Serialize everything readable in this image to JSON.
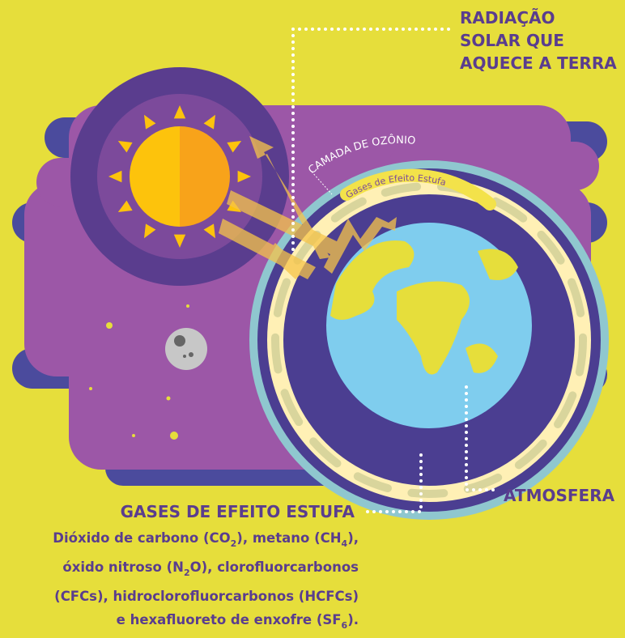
{
  "labels": {
    "radiation": [
      "RADIAÇÃO",
      "SOLAR QUE",
      "AQUECE A TERRA"
    ],
    "ozone": "CAMADA DE OZÔNIO",
    "greenhouse_ring": "Gases de Efeito Estufa",
    "atmosphere": "ATMOSFERA",
    "gases_title": "GASES DE EFEITO ESTUFA"
  },
  "description": {
    "lines": [
      [
        "Dióxido de carbono (CO",
        "2",
        "), metano (CH",
        "4",
        "),"
      ],
      [
        "óxido nitroso (N",
        "2",
        "O), clorofluorcarbonos"
      ],
      [
        "(CFCs), hidroclorofluorcarbonos (HCFCs)"
      ],
      [
        "e hexafluoreto de enxofre (SF",
        "6",
        ")."
      ]
    ]
  }
}
